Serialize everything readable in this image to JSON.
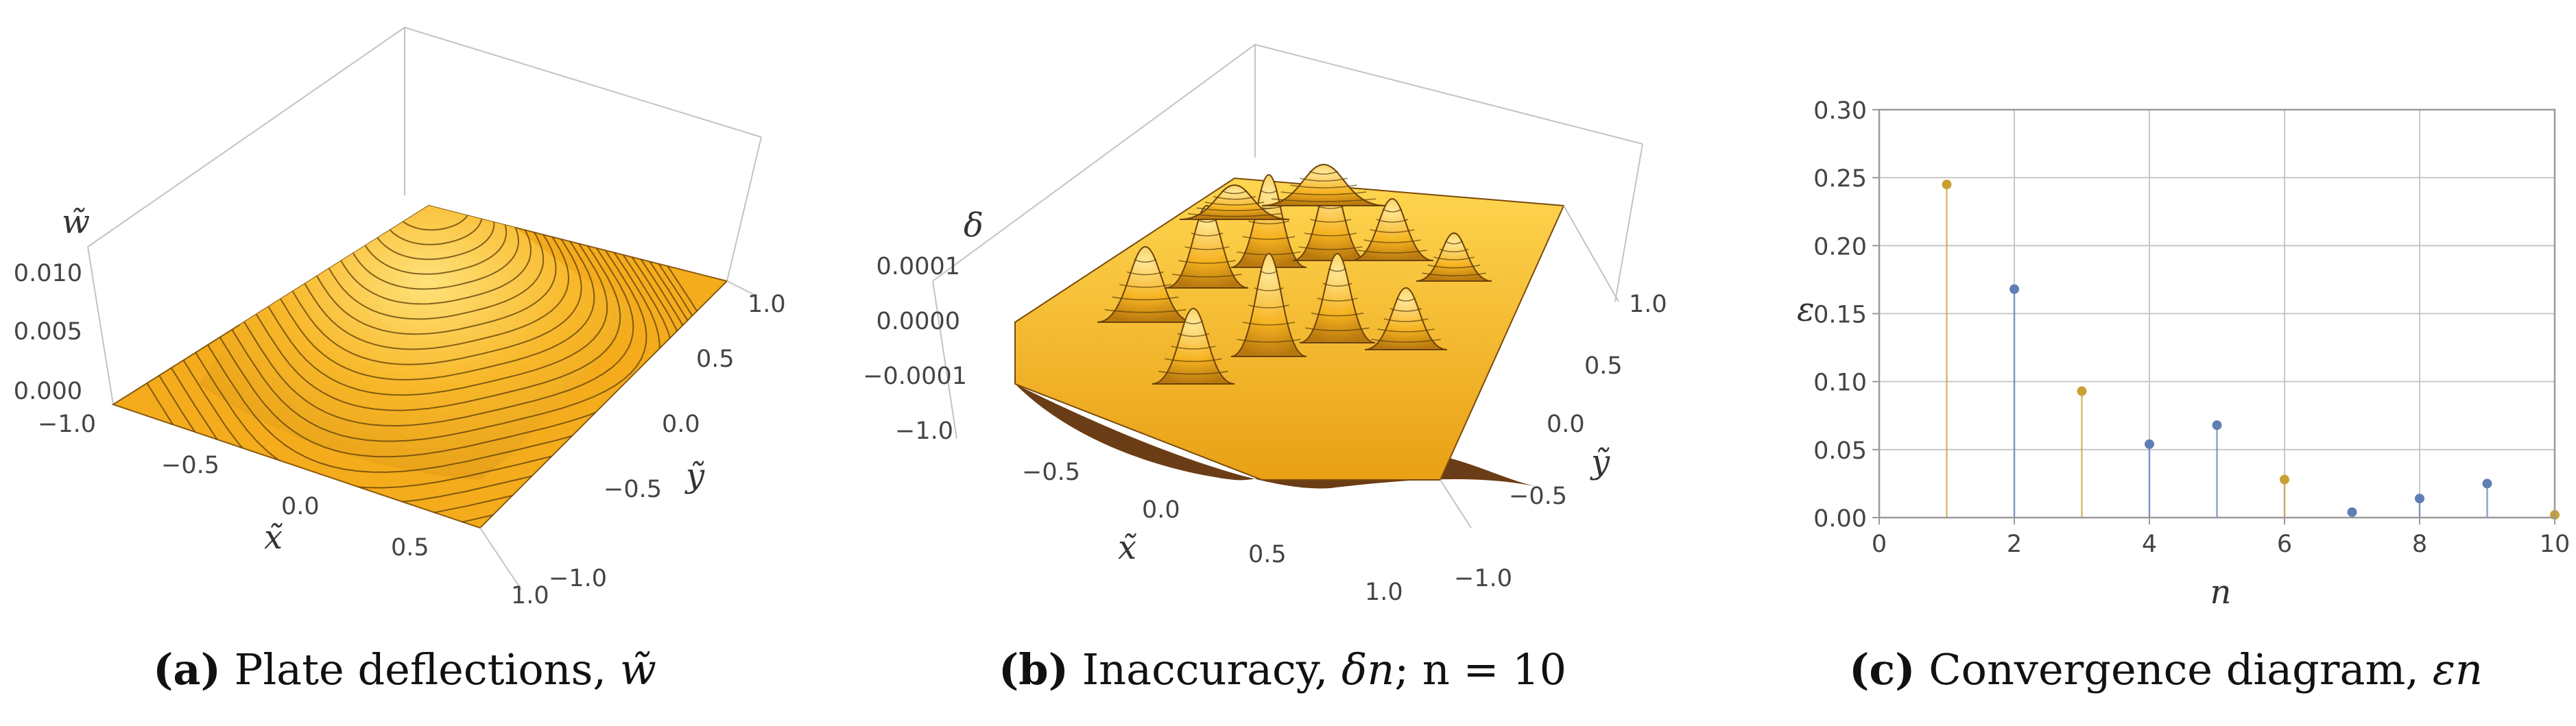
{
  "colors": {
    "surface_top": "#f6b521",
    "surface_light": "#ffd24a",
    "surface_dark": "#c97e10",
    "underside": "#6b3d16",
    "series_odd": "#c9a033",
    "series_even": "#5f7fb4",
    "box": "#b8b8b8"
  },
  "panel_a": {
    "caption_tag": "(a)",
    "caption_text": "Plate deflections,",
    "caption_math": "w̃",
    "z_label": "w̃",
    "x_label": "x̃",
    "y_label": "ỹ",
    "z_ticks": [
      "0.010",
      "0.005",
      "0.000"
    ],
    "x_ticks": [
      "−1.0",
      "−0.5",
      "0.0",
      "0.5",
      "1.0"
    ],
    "y_ticks": [
      "1.0",
      "0.5",
      "0.0",
      "−0.5",
      "−1.0"
    ]
  },
  "panel_b": {
    "caption_tag": "(b)",
    "caption_text": "Inaccuracy,",
    "caption_math": "δn",
    "caption_suffix": "; n = 10",
    "z_label": "δ",
    "x_label": "x̃",
    "y_label": "ỹ",
    "z_ticks": [
      "0.0001",
      "0.0000",
      "−0.0001"
    ],
    "x_ticks": [
      "−1.0",
      "−0.5",
      "0.0",
      "0.5",
      "1.0"
    ],
    "y_ticks": [
      "1.0",
      "0.5",
      "0.0",
      "−0.5",
      "−1.0"
    ]
  },
  "panel_c": {
    "caption_tag": "(c)",
    "caption_text": "Convergence diagram,",
    "caption_math": "εn"
  },
  "chart_data": {
    "type": "scatter",
    "style": "stem",
    "xlabel": "n",
    "ylabel": "ε",
    "xlim": [
      0,
      10
    ],
    "ylim": [
      0,
      0.3
    ],
    "xticks": [
      0,
      2,
      4,
      6,
      8,
      10
    ],
    "yticks": [
      0.0,
      0.05,
      0.1,
      0.15,
      0.2,
      0.25,
      0.3
    ],
    "ytick_labels": [
      "0.00",
      "0.05",
      "0.10",
      "0.15",
      "0.20",
      "0.25",
      "0.30"
    ],
    "grid": true,
    "x": [
      1,
      2,
      3,
      4,
      5,
      6,
      7,
      8,
      9,
      10
    ],
    "y": [
      0.245,
      0.168,
      0.093,
      0.054,
      0.068,
      0.028,
      0.004,
      0.014,
      0.025,
      0.002
    ],
    "point_colors": [
      "#c9a033",
      "#5f7fb4",
      "#c9a033",
      "#5f7fb4",
      "#5f7fb4",
      "#c9a033",
      "#5f7fb4",
      "#5f7fb4",
      "#5f7fb4",
      "#c9a033"
    ]
  }
}
